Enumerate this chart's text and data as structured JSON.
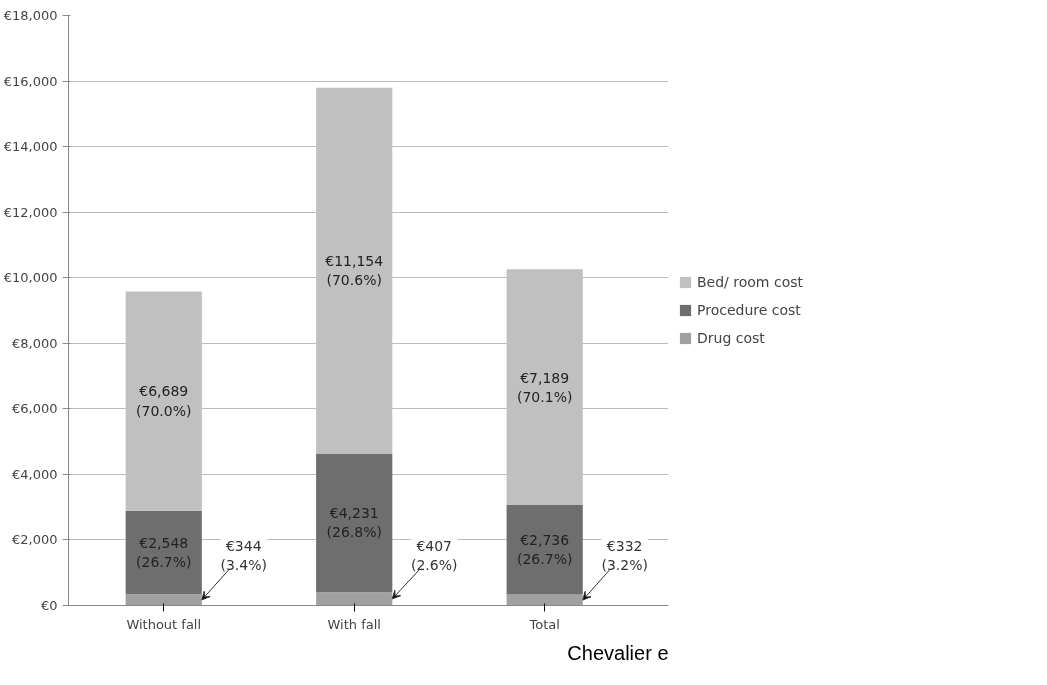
{
  "chart_data": {
    "type": "bar",
    "stacked": true,
    "categories": [
      "Without fall",
      "With fall",
      "Total"
    ],
    "series": [
      {
        "name": "Drug cost",
        "color": "#a0a0a0",
        "values": [
          344,
          407,
          332
        ],
        "value_labels": [
          "€344\n(3.4%)",
          "€407\n(2.6%)",
          "€332\n(3.2%)"
        ]
      },
      {
        "name": "Procedure cost",
        "color": "#6e6e6e",
        "values": [
          2548,
          4231,
          2736
        ],
        "value_labels": [
          "€2,548\n(26.7%)",
          "€4,231\n(26.8%)",
          "€2,736\n(26.7%)"
        ]
      },
      {
        "name": "Bed/ room cost",
        "color": "#c0c0c0",
        "values": [
          6689,
          11154,
          7189
        ],
        "value_labels": [
          "€6,689\n(70.0%)",
          "€11,154\n(70.6%)",
          "€7,189\n(70.1%)"
        ]
      }
    ],
    "ylim": [
      0,
      18000
    ],
    "yticks": [
      {
        "value": 0,
        "label": "€0"
      },
      {
        "value": 2000,
        "label": "€2,000"
      },
      {
        "value": 4000,
        "label": "€4,000"
      },
      {
        "value": 6000,
        "label": "€6,000"
      },
      {
        "value": 8000,
        "label": "€8,000"
      },
      {
        "value": 10000,
        "label": "€10,000"
      },
      {
        "value": 12000,
        "label": "€12,000"
      },
      {
        "value": 14000,
        "label": "€14,000"
      },
      {
        "value": 16000,
        "label": "€16,000"
      },
      {
        "value": 18000,
        "label": "€18,000"
      }
    ],
    "grid": "y",
    "legend": "right",
    "annotations": [
      "Chevalier e"
    ]
  }
}
